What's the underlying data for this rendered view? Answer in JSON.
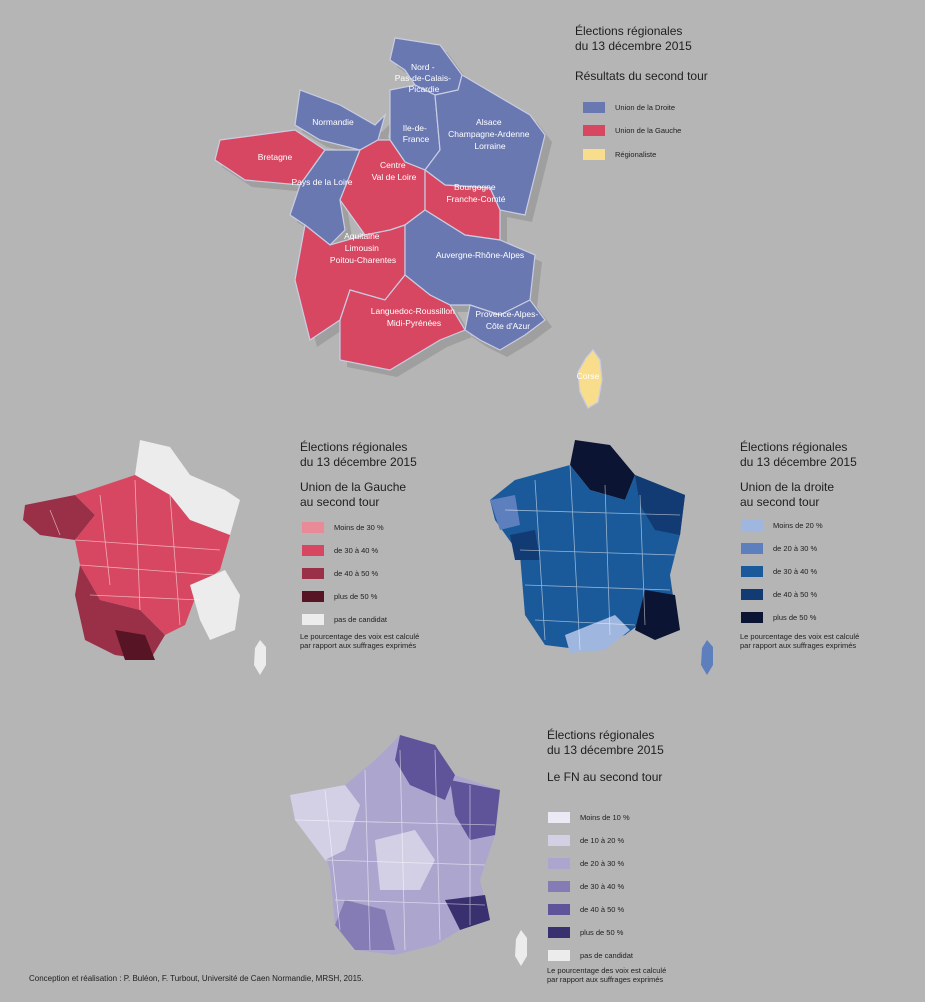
{
  "top_map": {
    "title_line1": "Élections régionales",
    "title_line2": "du 13 décembre 2015",
    "subtitle": "Résultats du second tour",
    "legend": [
      {
        "label": "Union de la Droite",
        "color": "#6a78b2"
      },
      {
        "label": "Union de la Gauche",
        "color": "#d84761"
      },
      {
        "label": "Régionaliste",
        "color": "#f7dd8c"
      }
    ],
    "regions": [
      {
        "key": "hdf",
        "lines": [
          "Nord -",
          "Pas-de-Calais-",
          "Picardie"
        ],
        "party": "droite"
      },
      {
        "key": "normandie",
        "lines": [
          "Normandie"
        ],
        "party": "droite"
      },
      {
        "key": "idf",
        "lines": [
          "Ile-de-",
          "France"
        ],
        "party": "droite"
      },
      {
        "key": "grandest",
        "lines": [
          "Alsace",
          "Champagne-Ardenne",
          "Lorraine"
        ],
        "party": "droite"
      },
      {
        "key": "bretagne",
        "lines": [
          "Bretagne"
        ],
        "party": "gauche"
      },
      {
        "key": "pdl",
        "lines": [
          "Pays de la Loire"
        ],
        "party": "droite"
      },
      {
        "key": "cvl",
        "lines": [
          "Centre",
          "Val de Loire"
        ],
        "party": "gauche"
      },
      {
        "key": "bfc",
        "lines": [
          "Bourgogne",
          "Franche-Comté"
        ],
        "party": "gauche"
      },
      {
        "key": "alpc",
        "lines": [
          "Aquitaine",
          "Limousin",
          "Poitou-Charentes"
        ],
        "party": "gauche"
      },
      {
        "key": "ara",
        "lines": [
          "Auvergne-Rhône-Alpes"
        ],
        "party": "droite"
      },
      {
        "key": "lrmp",
        "lines": [
          "Languedoc-Roussillon",
          "Midi-Pyrénées"
        ],
        "party": "gauche"
      },
      {
        "key": "paca",
        "lines": [
          "Provence-Alpes-",
          "Côte d'Azur"
        ],
        "party": "droite"
      },
      {
        "key": "corse",
        "lines": [
          "Corse"
        ],
        "party": "regionaliste"
      }
    ]
  },
  "left_map": {
    "title_line1": "Élections régionales",
    "title_line2": "du 13 décembre 2015",
    "subtitle_line1": "Union de la Gauche",
    "subtitle_line2": "au second tour",
    "legend": [
      {
        "label": "Moins de 30 %",
        "color": "#e88a97"
      },
      {
        "label": "de 30 à 40 %",
        "color": "#d84761"
      },
      {
        "label": "de 40 à 50 %",
        "color": "#9a2f48"
      },
      {
        "label": "plus de 50 %",
        "color": "#561425"
      },
      {
        "label": "pas de candidat",
        "color": "#ececec"
      }
    ],
    "note_line1": "Le pourcentage des voix est calculé",
    "note_line2": "par rapport aux suffrages exprimés"
  },
  "right_map": {
    "title_line1": "Élections régionales",
    "title_line2": "du 13 décembre 2015",
    "subtitle_line1": "Union de la droite",
    "subtitle_line2": "au second tour",
    "legend": [
      {
        "label": "Moins de 20 %",
        "color": "#9fb6de"
      },
      {
        "label": "de 20 à 30 %",
        "color": "#5d7fbe"
      },
      {
        "label": "de 30 à 40 %",
        "color": "#1a5a9a"
      },
      {
        "label": "de 40 à 50 %",
        "color": "#123a73"
      },
      {
        "label": "plus de 50 %",
        "color": "#0b1433"
      }
    ],
    "note_line1": "Le pourcentage des voix est calculé",
    "note_line2": "par rapport aux suffrages exprimés"
  },
  "bottom_map": {
    "title_line1": "Élections régionales",
    "title_line2": "du 13 décembre 2015",
    "subtitle": "Le FN au second tour",
    "legend": [
      {
        "label": "Moins de 10 %",
        "color": "#ebe9f4"
      },
      {
        "label": "de 10 à 20 %",
        "color": "#d3d0e6"
      },
      {
        "label": "de 20 à 30 %",
        "color": "#aca6cf"
      },
      {
        "label": "de 30 à 40 %",
        "color": "#857cb5"
      },
      {
        "label": "de 40 à 50 %",
        "color": "#5f5499"
      },
      {
        "label": "plus de 50 %",
        "color": "#39306f"
      },
      {
        "label": "pas de candidat",
        "color": "#ececec"
      }
    ],
    "note_line1": "Le pourcentage des voix est calculé",
    "note_line2": "par rapport aux suffrages exprimés"
  },
  "credit": "Conception et réalisation : P. Buléon, F. Turbout, Université de Caen Normandie, MRSH, 2015."
}
